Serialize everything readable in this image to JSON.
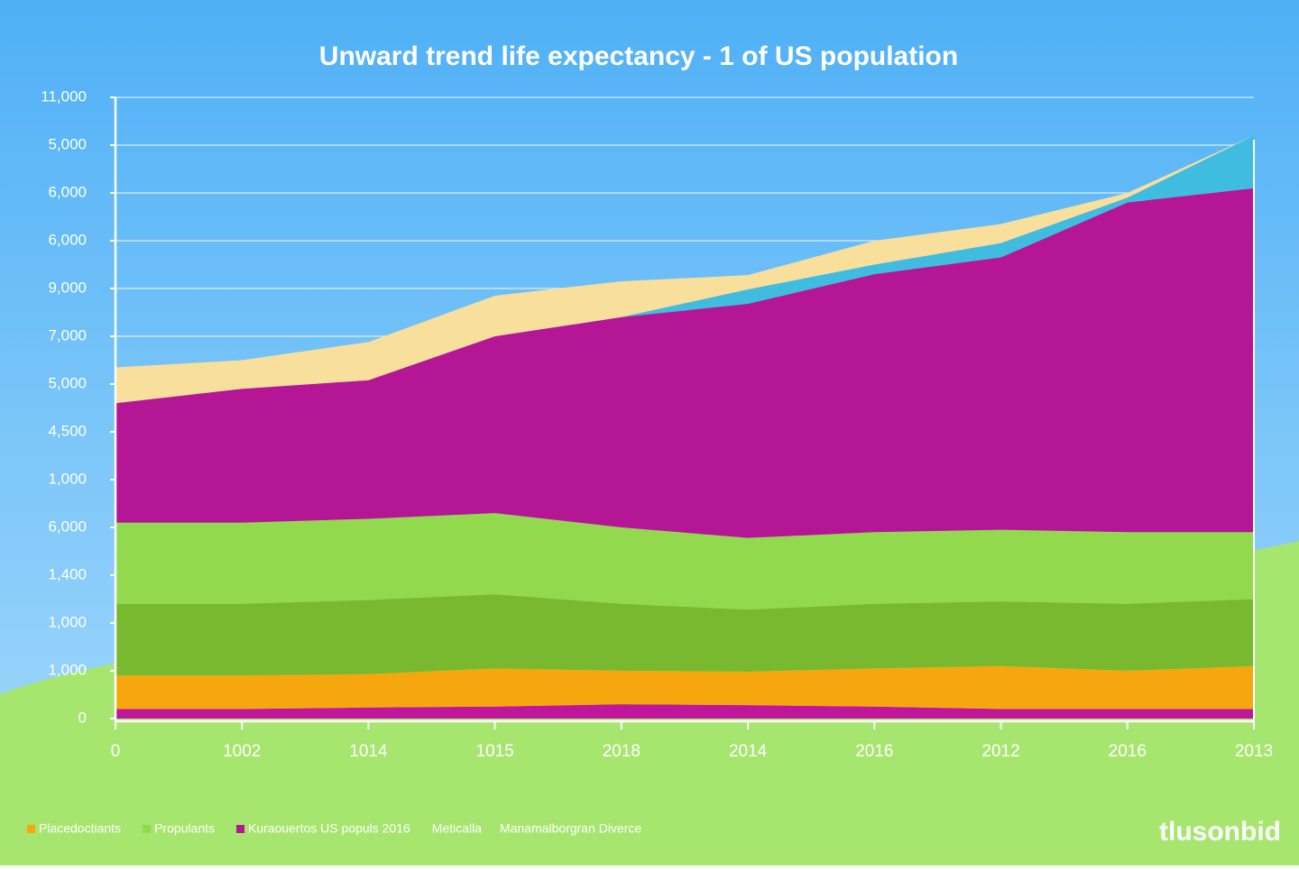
{
  "chart_data": {
    "type": "stacked_area",
    "title": "Unward trend life expectancy - 1 of US population",
    "categories": [
      "0",
      "1002",
      "1014",
      "1015",
      "2018",
      "2014",
      "2016",
      "2012",
      "2016",
      "2013"
    ],
    "ylim": [
      0,
      13
    ],
    "yticks": [
      {
        "value": 0,
        "label": "0"
      },
      {
        "value": 1,
        "label": "1,000"
      },
      {
        "value": 2,
        "label": "1,000"
      },
      {
        "value": 3,
        "label": "1,400"
      },
      {
        "value": 4,
        "label": "6,000"
      },
      {
        "value": 5,
        "label": "1,000"
      },
      {
        "value": 6,
        "label": "4,500"
      },
      {
        "value": 7,
        "label": "5,000"
      },
      {
        "value": 8,
        "label": "7,000"
      },
      {
        "value": 9,
        "label": "9,000"
      },
      {
        "value": 10,
        "label": "6,000"
      },
      {
        "value": 11,
        "label": "6,000"
      },
      {
        "value": 12,
        "label": "5,000"
      },
      {
        "value": 13,
        "label": "11,000"
      }
    ],
    "grid": true,
    "series": [
      {
        "color": "#c0169b",
        "values": [
          0.2,
          0.2,
          0.23,
          0.25,
          0.3,
          0.28,
          0.25,
          0.2,
          0.2,
          0.2
        ]
      },
      {
        "name": "Placedoctiants",
        "color": "#f7a70e",
        "values": [
          0.7,
          0.7,
          0.7,
          0.8,
          0.7,
          0.7,
          0.8,
          0.9,
          0.8,
          0.9
        ]
      },
      {
        "color": "#78b92f",
        "values": [
          1.5,
          1.5,
          1.55,
          1.55,
          1.4,
          1.3,
          1.35,
          1.35,
          1.4,
          1.4
        ]
      },
      {
        "name": "Propulants",
        "color": "#93d94e",
        "values": [
          1.7,
          1.7,
          1.7,
          1.7,
          1.6,
          1.5,
          1.5,
          1.5,
          1.5,
          1.4
        ]
      },
      {
        "name": "Kuraouertos US populs 2016",
        "color": "#b51696",
        "values": [
          2.5,
          2.8,
          2.9,
          3.7,
          4.4,
          4.9,
          5.4,
          5.7,
          6.9,
          7.2
        ]
      },
      {
        "color": "#3fbce0",
        "values": [
          0,
          0,
          0,
          0,
          0,
          0.3,
          0.2,
          0.3,
          0.1,
          1.1
        ]
      },
      {
        "color": "#f8df9b",
        "values": [
          0.75,
          0.6,
          0.8,
          0.85,
          0.75,
          0.3,
          0.5,
          0.4,
          0.1,
          0
        ]
      }
    ],
    "legend_notes": [
      "Meticalla",
      "Manamalborgran  Diverce"
    ],
    "watermark": "tlusonbid"
  }
}
